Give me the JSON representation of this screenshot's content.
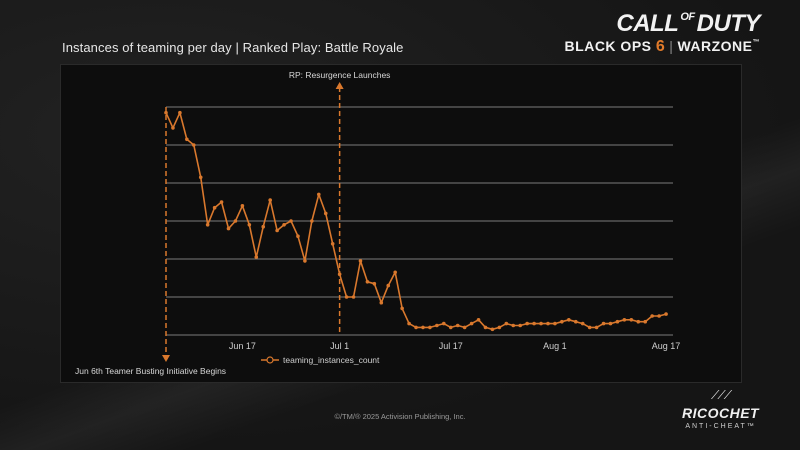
{
  "header": {
    "title": "Instances of teaming per day | Ranked Play: Battle Royale",
    "logo_line1_a": "CALL",
    "logo_line1_of": "OF",
    "logo_line1_b": "DUTY",
    "logo_line2_a": "BLACK OPS",
    "logo_line2_six": "6",
    "logo_line2_b": "WARZONE",
    "logo_tm": "™"
  },
  "footer": {
    "copyright": "©/TM/® 2025 Activision Publishing, Inc.",
    "ricochet_name": "RICOCHET",
    "ricochet_sub": "ANTI-CHEAT™"
  },
  "colors": {
    "series": "#d9782d",
    "grid": "#7a7a7a",
    "background": "#0d0d0d"
  },
  "chart_data": {
    "type": "line",
    "title": "Instances of teaming per day | Ranked Play: Battle Royale",
    "xlabel": "",
    "ylabel": "",
    "x_start": "2025-06-06",
    "x_ticks": [
      "Jun 17",
      "Jul 1",
      "Jul 17",
      "Aug 1",
      "Aug 17"
    ],
    "x_tick_days": [
      11,
      25,
      41,
      56,
      72
    ],
    "x_range_days": [
      0,
      73
    ],
    "y_levels": 6,
    "y_axis_labels_shown": false,
    "grid": true,
    "legend": {
      "position": "bottom-center",
      "entries": [
        "teaming_instances_count"
      ]
    },
    "series": [
      {
        "name": "teaming_instances_count",
        "values": [
          5.85,
          5.45,
          5.85,
          5.15,
          5.0,
          4.15,
          2.9,
          3.35,
          3.5,
          2.8,
          3.0,
          3.4,
          2.9,
          2.05,
          2.85,
          3.55,
          2.75,
          2.9,
          3.0,
          2.6,
          1.95,
          3.0,
          3.7,
          3.2,
          2.4,
          1.6,
          1.0,
          1.0,
          1.95,
          1.4,
          1.35,
          0.85,
          1.3,
          1.65,
          0.7,
          0.3,
          0.2,
          0.2,
          0.2,
          0.25,
          0.3,
          0.2,
          0.25,
          0.2,
          0.3,
          0.4,
          0.2,
          0.15,
          0.2,
          0.3,
          0.25,
          0.25,
          0.3,
          0.3,
          0.3,
          0.3,
          0.3,
          0.35,
          0.4,
          0.35,
          0.3,
          0.2,
          0.2,
          0.3,
          0.3,
          0.35,
          0.4,
          0.4,
          0.35,
          0.35,
          0.5,
          0.5,
          0.55
        ]
      }
    ],
    "annotations": [
      {
        "label": "Jun 6th Teamer Busting Initiative Begins",
        "day": 0,
        "direction": "down"
      },
      {
        "label": "RP: Resurgence Launches",
        "day": 25,
        "direction": "up"
      }
    ]
  }
}
